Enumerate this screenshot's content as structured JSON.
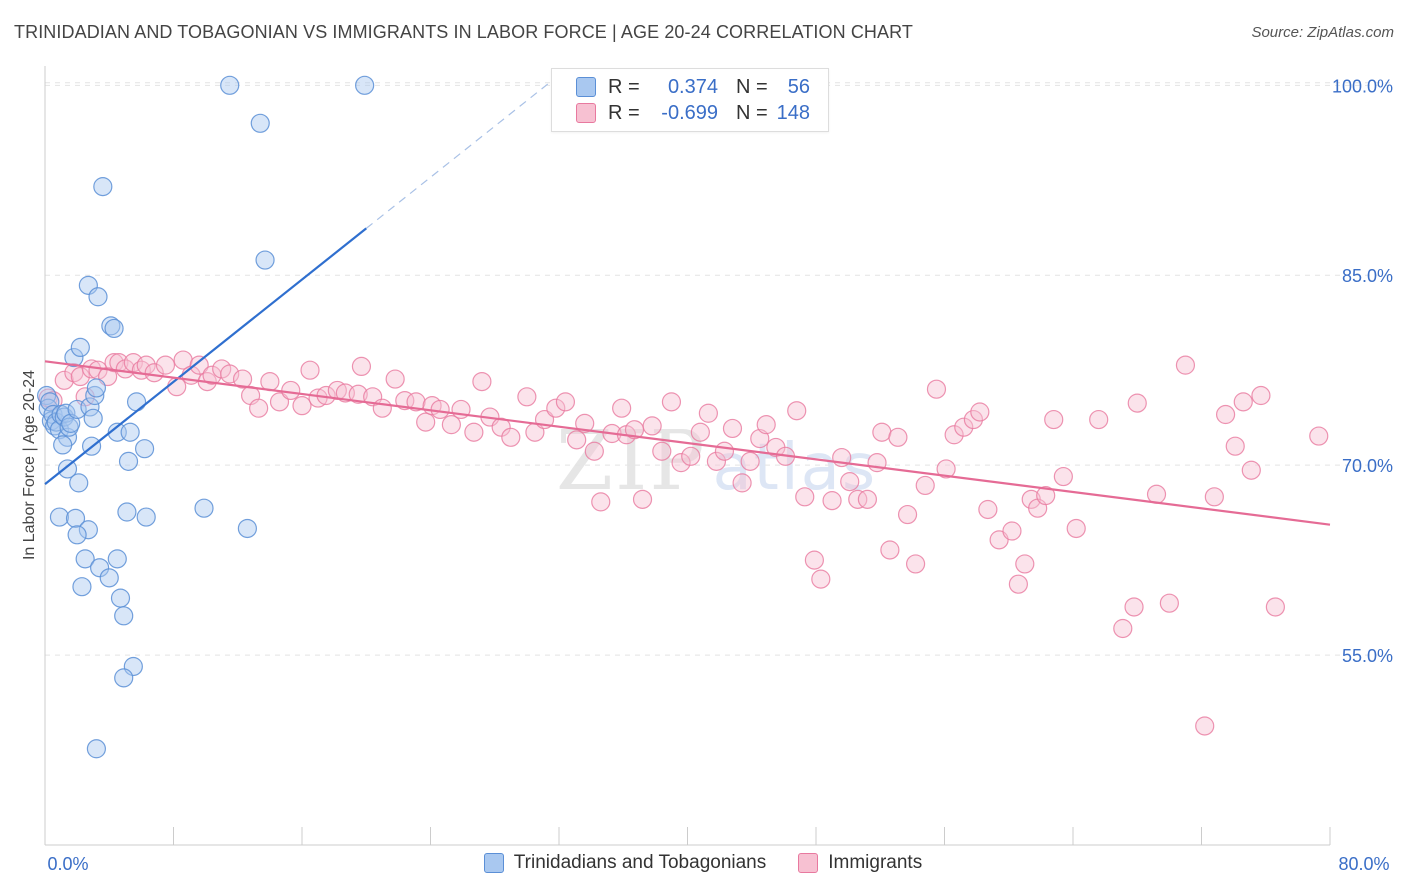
{
  "title": "TRINIDADIAN AND TOBAGONIAN VS IMMIGRANTS IN LABOR FORCE | AGE 20-24 CORRELATION CHART",
  "source": "Source: ZipAtlas.com",
  "watermark": {
    "zip": "ZIP",
    "atlas": "atlas"
  },
  "legend": {
    "r_label": "R =",
    "n_label": "N =",
    "blue": {
      "r": "0.374",
      "n": "56"
    },
    "pink": {
      "r": "-0.699",
      "n": "148"
    }
  },
  "colors": {
    "blue": "#5b8fd6",
    "blue_fill": "#a9c8f0",
    "blue_line": "#2f6fcf",
    "pink": "#e8799f",
    "pink_fill": "#f7c1d2",
    "pink_line": "#e56b95",
    "tick_text": "#3a6ec7"
  },
  "chart_data": {
    "type": "scatter",
    "title": "TRINIDADIAN AND TOBAGONIAN VS IMMIGRANTS IN LABOR FORCE | AGE 20-24 CORRELATION CHART",
    "xlabel": "",
    "ylabel": "In Labor Force | Age 20-24",
    "xlim": [
      0,
      80
    ],
    "ylim": [
      40,
      102
    ],
    "x_tick_labels": [
      "0.0%",
      "80.0%"
    ],
    "y_ticks": [
      100,
      85,
      70,
      55
    ],
    "y_tick_labels": [
      "100.0%",
      "85.0%",
      "70.0%",
      "55.0%"
    ],
    "series": [
      {
        "name": "Trinidadians and Tobagonians",
        "trend": {
          "x": [
            0,
            20.0
          ],
          "y": [
            68.5,
            88.7
          ],
          "dash_to": [
            31.3,
            100.1
          ]
        },
        "points": [
          [
            0.1,
            75.5
          ],
          [
            0.2,
            74.5
          ],
          [
            0.3,
            75.0
          ],
          [
            0.4,
            73.5
          ],
          [
            0.5,
            74.0
          ],
          [
            0.6,
            73.1
          ],
          [
            0.7,
            73.4
          ],
          [
            0.9,
            72.8
          ],
          [
            1.0,
            74.0
          ],
          [
            1.2,
            73.8
          ],
          [
            1.3,
            74.1
          ],
          [
            1.4,
            72.2
          ],
          [
            1.5,
            73.0
          ],
          [
            1.6,
            73.3
          ],
          [
            1.1,
            71.6
          ],
          [
            1.8,
            78.5
          ],
          [
            2.2,
            79.3
          ],
          [
            2.0,
            74.4
          ],
          [
            2.8,
            74.6
          ],
          [
            3.0,
            73.7
          ],
          [
            3.1,
            75.5
          ],
          [
            3.2,
            76.1
          ],
          [
            2.9,
            71.5
          ],
          [
            1.4,
            69.7
          ],
          [
            2.1,
            68.6
          ],
          [
            2.7,
            84.2
          ],
          [
            3.3,
            83.3
          ],
          [
            4.1,
            81.0
          ],
          [
            4.3,
            80.8
          ],
          [
            3.6,
            92.0
          ],
          [
            5.7,
            75.0
          ],
          [
            4.5,
            72.6
          ],
          [
            5.3,
            72.6
          ],
          [
            5.2,
            70.3
          ],
          [
            6.2,
            71.3
          ],
          [
            0.9,
            65.9
          ],
          [
            1.9,
            65.8
          ],
          [
            2.7,
            64.9
          ],
          [
            2.0,
            64.5
          ],
          [
            2.5,
            62.6
          ],
          [
            3.4,
            61.9
          ],
          [
            4.0,
            61.1
          ],
          [
            4.5,
            62.6
          ],
          [
            2.3,
            60.4
          ],
          [
            4.7,
            59.5
          ],
          [
            4.9,
            58.1
          ],
          [
            5.1,
            66.3
          ],
          [
            6.3,
            65.9
          ],
          [
            5.5,
            54.1
          ],
          [
            4.9,
            53.2
          ],
          [
            3.2,
            47.6
          ],
          [
            9.9,
            66.6
          ],
          [
            12.6,
            65.0
          ],
          [
            13.7,
            86.2
          ],
          [
            11.5,
            100.0
          ],
          [
            13.4,
            97.0
          ],
          [
            19.9,
            100.0
          ]
        ]
      },
      {
        "name": "Immigrants",
        "trend": {
          "x": [
            0,
            80.0
          ],
          "y": [
            78.2,
            65.3
          ]
        },
        "points": [
          [
            0.2,
            75.3
          ],
          [
            0.5,
            75.1
          ],
          [
            1.2,
            76.7
          ],
          [
            1.8,
            77.3
          ],
          [
            2.2,
            77.0
          ],
          [
            2.5,
            75.4
          ],
          [
            2.9,
            77.6
          ],
          [
            3.3,
            77.5
          ],
          [
            3.9,
            77.0
          ],
          [
            4.3,
            78.1
          ],
          [
            4.6,
            78.1
          ],
          [
            5.0,
            77.6
          ],
          [
            5.5,
            78.1
          ],
          [
            6.0,
            77.5
          ],
          [
            6.3,
            77.9
          ],
          [
            6.8,
            77.3
          ],
          [
            7.5,
            77.9
          ],
          [
            8.2,
            76.2
          ],
          [
            8.6,
            78.3
          ],
          [
            9.1,
            77.1
          ],
          [
            9.6,
            77.9
          ],
          [
            10.1,
            76.6
          ],
          [
            10.4,
            77.1
          ],
          [
            11.0,
            77.6
          ],
          [
            11.5,
            77.2
          ],
          [
            12.3,
            76.8
          ],
          [
            12.8,
            75.5
          ],
          [
            13.3,
            74.5
          ],
          [
            14.0,
            76.6
          ],
          [
            14.6,
            75.0
          ],
          [
            15.3,
            75.9
          ],
          [
            16.0,
            74.7
          ],
          [
            16.5,
            77.5
          ],
          [
            17.0,
            75.3
          ],
          [
            17.5,
            75.5
          ],
          [
            18.2,
            75.9
          ],
          [
            18.7,
            75.7
          ],
          [
            19.5,
            75.6
          ],
          [
            19.7,
            77.8
          ],
          [
            20.4,
            75.4
          ],
          [
            21.0,
            74.5
          ],
          [
            21.8,
            76.8
          ],
          [
            22.4,
            75.1
          ],
          [
            23.1,
            75.0
          ],
          [
            23.7,
            73.4
          ],
          [
            24.1,
            74.7
          ],
          [
            24.6,
            74.4
          ],
          [
            25.3,
            73.2
          ],
          [
            25.9,
            74.4
          ],
          [
            26.7,
            72.6
          ],
          [
            27.2,
            76.6
          ],
          [
            27.7,
            73.8
          ],
          [
            28.4,
            73.0
          ],
          [
            29.0,
            72.2
          ],
          [
            30.0,
            75.4
          ],
          [
            30.5,
            72.6
          ],
          [
            31.1,
            73.6
          ],
          [
            31.8,
            74.5
          ],
          [
            32.4,
            75.0
          ],
          [
            33.1,
            72.0
          ],
          [
            33.6,
            73.3
          ],
          [
            34.2,
            71.1
          ],
          [
            34.6,
            67.1
          ],
          [
            35.3,
            72.5
          ],
          [
            35.9,
            74.5
          ],
          [
            36.2,
            72.4
          ],
          [
            36.7,
            72.8
          ],
          [
            37.2,
            67.3
          ],
          [
            37.8,
            73.1
          ],
          [
            38.4,
            71.1
          ],
          [
            39.0,
            75.0
          ],
          [
            39.6,
            70.2
          ],
          [
            40.2,
            70.7
          ],
          [
            40.8,
            72.6
          ],
          [
            41.3,
            74.1
          ],
          [
            41.8,
            70.3
          ],
          [
            42.3,
            71.1
          ],
          [
            42.8,
            72.9
          ],
          [
            43.4,
            68.6
          ],
          [
            43.9,
            70.3
          ],
          [
            44.5,
            72.1
          ],
          [
            44.9,
            73.2
          ],
          [
            45.5,
            71.4
          ],
          [
            46.1,
            70.7
          ],
          [
            46.8,
            74.3
          ],
          [
            47.3,
            67.5
          ],
          [
            47.9,
            62.5
          ],
          [
            48.3,
            61.0
          ],
          [
            49.0,
            67.2
          ],
          [
            49.6,
            70.6
          ],
          [
            50.1,
            68.7
          ],
          [
            50.6,
            67.3
          ],
          [
            51.2,
            67.3
          ],
          [
            51.8,
            70.2
          ],
          [
            52.1,
            72.6
          ],
          [
            52.6,
            63.3
          ],
          [
            53.1,
            72.2
          ],
          [
            53.7,
            66.1
          ],
          [
            54.2,
            62.2
          ],
          [
            54.8,
            68.4
          ],
          [
            55.5,
            76.0
          ],
          [
            56.1,
            69.7
          ],
          [
            56.6,
            72.4
          ],
          [
            57.2,
            73.0
          ],
          [
            57.8,
            73.6
          ],
          [
            58.2,
            74.2
          ],
          [
            58.7,
            66.5
          ],
          [
            59.4,
            64.1
          ],
          [
            60.2,
            64.8
          ],
          [
            60.6,
            60.6
          ],
          [
            61.0,
            62.2
          ],
          [
            61.4,
            67.3
          ],
          [
            61.8,
            66.6
          ],
          [
            62.3,
            67.6
          ],
          [
            62.8,
            73.6
          ],
          [
            63.4,
            69.1
          ],
          [
            64.2,
            65.0
          ],
          [
            65.6,
            73.6
          ],
          [
            67.1,
            57.1
          ],
          [
            67.8,
            58.8
          ],
          [
            68.0,
            74.9
          ],
          [
            69.2,
            67.7
          ],
          [
            70.0,
            59.1
          ],
          [
            71.0,
            77.9
          ],
          [
            72.2,
            49.4
          ],
          [
            72.8,
            67.5
          ],
          [
            73.5,
            74.0
          ],
          [
            74.1,
            71.5
          ],
          [
            74.6,
            75.0
          ],
          [
            75.1,
            69.6
          ],
          [
            75.7,
            75.5
          ],
          [
            76.6,
            58.8
          ],
          [
            79.3,
            72.3
          ]
        ]
      }
    ]
  },
  "bottom_legend": {
    "blue": "Trinidadians and Tobagonians",
    "pink": "Immigrants"
  }
}
